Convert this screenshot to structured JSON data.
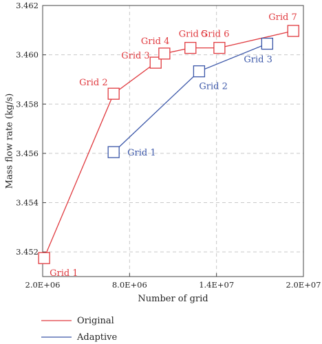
{
  "chart_data": {
    "type": "line",
    "xlabel": "Number of grid",
    "ylabel": "Mass flow rate (kg/s)",
    "xlim": [
      2000000,
      20000000
    ],
    "ylim": [
      3.451,
      3.462
    ],
    "x_ticks": [
      2000000,
      8000000,
      14000000,
      20000000
    ],
    "x_tick_labels": [
      "2.0E+06",
      "8.0E+06",
      "1.4E+07",
      "2.0E+07"
    ],
    "y_ticks": [
      3.452,
      3.454,
      3.456,
      3.458,
      3.46,
      3.462
    ],
    "y_tick_labels": [
      "3.452",
      "3.454",
      "3.456",
      "3.458",
      "3.460",
      "3.462"
    ],
    "grid": true,
    "legend_position": "bottom-left, below plot",
    "series": [
      {
        "name": "Original",
        "color": "#e0393e",
        "marker": "square",
        "x": [
          2100000,
          6900000,
          9800000,
          10400000,
          12200000,
          14200000,
          19300000
        ],
        "y": [
          3.45175,
          3.45842,
          3.45968,
          3.46005,
          3.46028,
          3.46028,
          3.46097
        ],
        "point_labels": [
          "Grid 1",
          "Grid 2",
          "Grid 3",
          "Grid 4",
          "Grid 5",
          "Grid 6",
          "Grid 7"
        ]
      },
      {
        "name": "Adaptive",
        "color": "#3a56a8",
        "marker": "square",
        "x": [
          6900000,
          12800000,
          17500000
        ],
        "y": [
          3.45605,
          3.45933,
          3.46045
        ],
        "point_labels": [
          "Grid 1",
          "Grid 2",
          "Grid 3"
        ]
      }
    ]
  }
}
